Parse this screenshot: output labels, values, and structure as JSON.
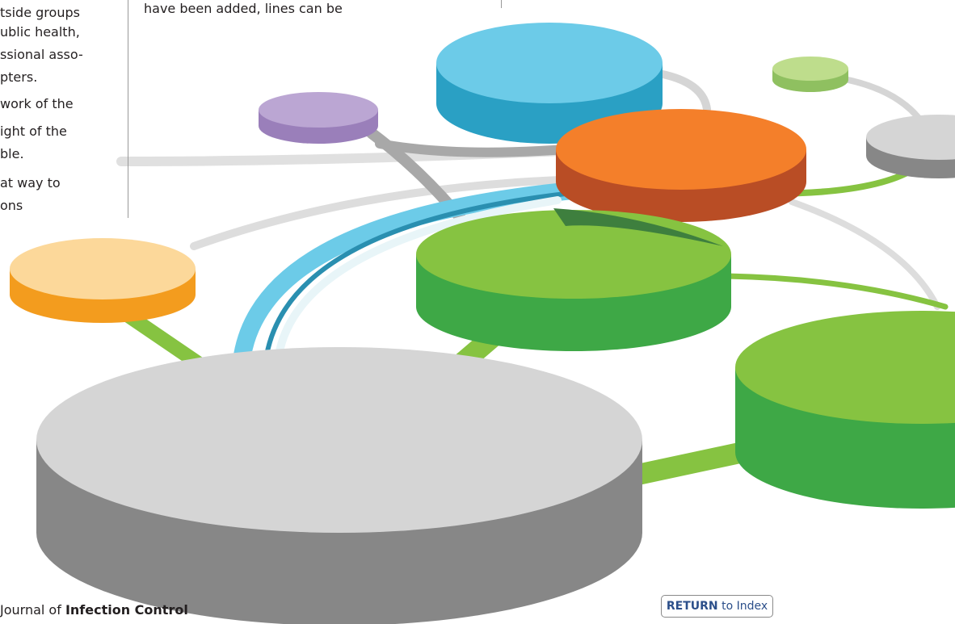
{
  "left_column": {
    "lines": [
      "tside groups",
      "ublic health,",
      "ssional asso-",
      "pters.",
      "work of the",
      "ight of the",
      "ble.",
      "at way to",
      "ons"
    ]
  },
  "middle_column": {
    "lines": [
      "have been added, lines can be"
    ]
  },
  "footer": {
    "journal_prefix": "Journal of",
    "journal_name": "Infection Control",
    "return_button": {
      "bold": "RETURN",
      "text": "to Index"
    }
  }
}
